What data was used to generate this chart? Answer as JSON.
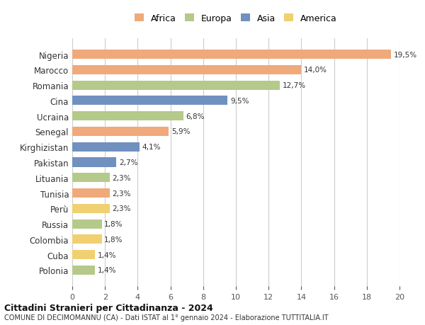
{
  "countries": [
    "Nigeria",
    "Marocco",
    "Romania",
    "Cina",
    "Ucraina",
    "Senegal",
    "Kirghizistan",
    "Pakistan",
    "Lituania",
    "Tunisia",
    "Perù",
    "Russia",
    "Colombia",
    "Cuba",
    "Polonia"
  ],
  "values": [
    19.5,
    14.0,
    12.7,
    9.5,
    6.8,
    5.9,
    4.1,
    2.7,
    2.3,
    2.3,
    2.3,
    1.8,
    1.8,
    1.4,
    1.4
  ],
  "labels": [
    "19,5%",
    "14,0%",
    "12,7%",
    "9,5%",
    "6,8%",
    "5,9%",
    "4,1%",
    "2,7%",
    "2,3%",
    "2,3%",
    "2,3%",
    "1,8%",
    "1,8%",
    "1,4%",
    "1,4%"
  ],
  "continents": [
    "Africa",
    "Africa",
    "Europa",
    "Asia",
    "Europa",
    "Africa",
    "Asia",
    "Asia",
    "Europa",
    "Africa",
    "America",
    "Europa",
    "America",
    "America",
    "Europa"
  ],
  "colors": {
    "Africa": "#F0A97A",
    "Europa": "#B5C98A",
    "Asia": "#7090C0",
    "America": "#F0D070"
  },
  "legend_order": [
    "Africa",
    "Europa",
    "Asia",
    "America"
  ],
  "title": "Cittadini Stranieri per Cittadinanza - 2024",
  "subtitle": "COMUNE DI DECIMOMANNU (CA) - Dati ISTAT al 1° gennaio 2024 - Elaborazione TUTTITALIA.IT",
  "xlim": [
    0,
    20
  ],
  "xticks": [
    0,
    2,
    4,
    6,
    8,
    10,
    12,
    14,
    16,
    18,
    20
  ],
  "background_color": "#ffffff",
  "grid_color": "#cccccc"
}
